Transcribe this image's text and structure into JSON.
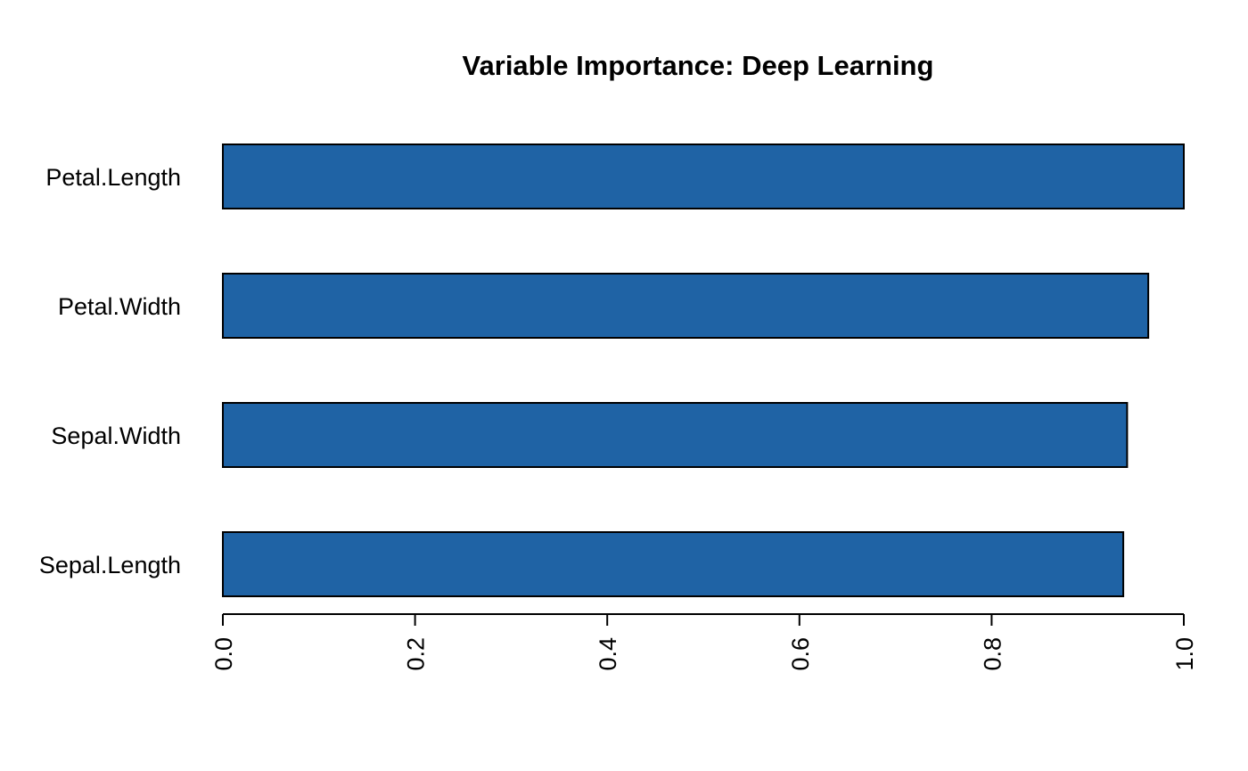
{
  "chart_data": {
    "type": "bar",
    "orientation": "horizontal",
    "title": "Variable Importance: Deep Learning",
    "xlabel": "",
    "ylabel": "",
    "categories": [
      "Petal.Length",
      "Petal.Width",
      "Sepal.Width",
      "Sepal.Length"
    ],
    "values": [
      1.0,
      0.963,
      0.941,
      0.937
    ],
    "xlim": [
      0,
      1.0
    ],
    "x_ticks": [
      0.0,
      0.2,
      0.4,
      0.6,
      0.8,
      1.0
    ],
    "x_tick_labels": [
      "0.0",
      "0.2",
      "0.4",
      "0.6",
      "0.8",
      "1.0"
    ],
    "grid": false,
    "bar_color": "#1f63a5",
    "bar_border_color": "#000000"
  }
}
